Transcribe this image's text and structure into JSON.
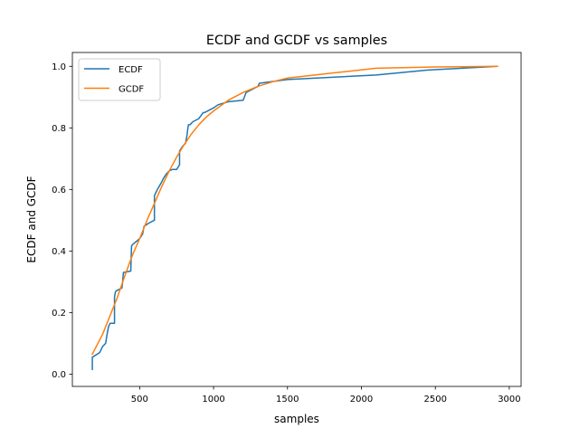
{
  "chart_data": {
    "type": "line",
    "title": "ECDF and GCDF vs samples",
    "xlabel": "samples",
    "ylabel": "ECDF and GCDF",
    "xlim": [
      45,
      3080
    ],
    "ylim": [
      -0.04,
      1.045
    ],
    "xticks": [
      500,
      1000,
      1500,
      2000,
      2500,
      3000
    ],
    "yticks": [
      0.0,
      0.2,
      0.4,
      0.6,
      0.8,
      1.0
    ],
    "xtick_labels": [
      "500",
      "1000",
      "1500",
      "2000",
      "2500",
      "3000"
    ],
    "ytick_labels": [
      "0.0",
      "0.2",
      "0.4",
      "0.6",
      "0.8",
      "1.0"
    ],
    "legend_position": "upper-left",
    "series": [
      {
        "name": "ECDF",
        "color": "#1f77b4",
        "x": [
          180,
          180,
          230,
          240,
          250,
          270,
          280,
          290,
          300,
          330,
          330,
          335,
          340,
          380,
          385,
          390,
          440,
          445,
          450,
          500,
          520,
          530,
          560,
          600,
          600,
          610,
          620,
          650,
          660,
          680,
          700,
          720,
          750,
          770,
          770,
          790,
          810,
          820,
          825,
          830,
          840,
          860,
          900,
          930,
          940,
          1000,
          1030,
          1050,
          1100,
          1200,
          1220,
          1300,
          1310,
          1500,
          2100,
          2450,
          2920
        ],
        "y": [
          0.015,
          0.055,
          0.07,
          0.08,
          0.09,
          0.1,
          0.13,
          0.155,
          0.165,
          0.165,
          0.25,
          0.265,
          0.27,
          0.28,
          0.3,
          0.33,
          0.335,
          0.415,
          0.42,
          0.44,
          0.455,
          0.48,
          0.49,
          0.5,
          0.58,
          0.59,
          0.6,
          0.625,
          0.635,
          0.65,
          0.66,
          0.665,
          0.665,
          0.68,
          0.725,
          0.74,
          0.75,
          0.775,
          0.795,
          0.81,
          0.81,
          0.82,
          0.83,
          0.85,
          0.85,
          0.865,
          0.875,
          0.878,
          0.885,
          0.89,
          0.915,
          0.935,
          0.945,
          0.957,
          0.972,
          0.988,
          1.0
        ]
      },
      {
        "name": "GCDF",
        "color": "#ff7f0e",
        "x": [
          180,
          250,
          300,
          350,
          400,
          450,
          500,
          550,
          600,
          650,
          700,
          750,
          800,
          850,
          900,
          950,
          1000,
          1100,
          1200,
          1300,
          1400,
          1500,
          1800,
          2100,
          2500,
          2920
        ],
        "y": [
          0.065,
          0.13,
          0.19,
          0.25,
          0.32,
          0.385,
          0.44,
          0.5,
          0.555,
          0.61,
          0.66,
          0.705,
          0.745,
          0.78,
          0.81,
          0.835,
          0.855,
          0.89,
          0.915,
          0.935,
          0.95,
          0.962,
          0.978,
          0.994,
          0.998,
          1.0
        ]
      }
    ]
  }
}
